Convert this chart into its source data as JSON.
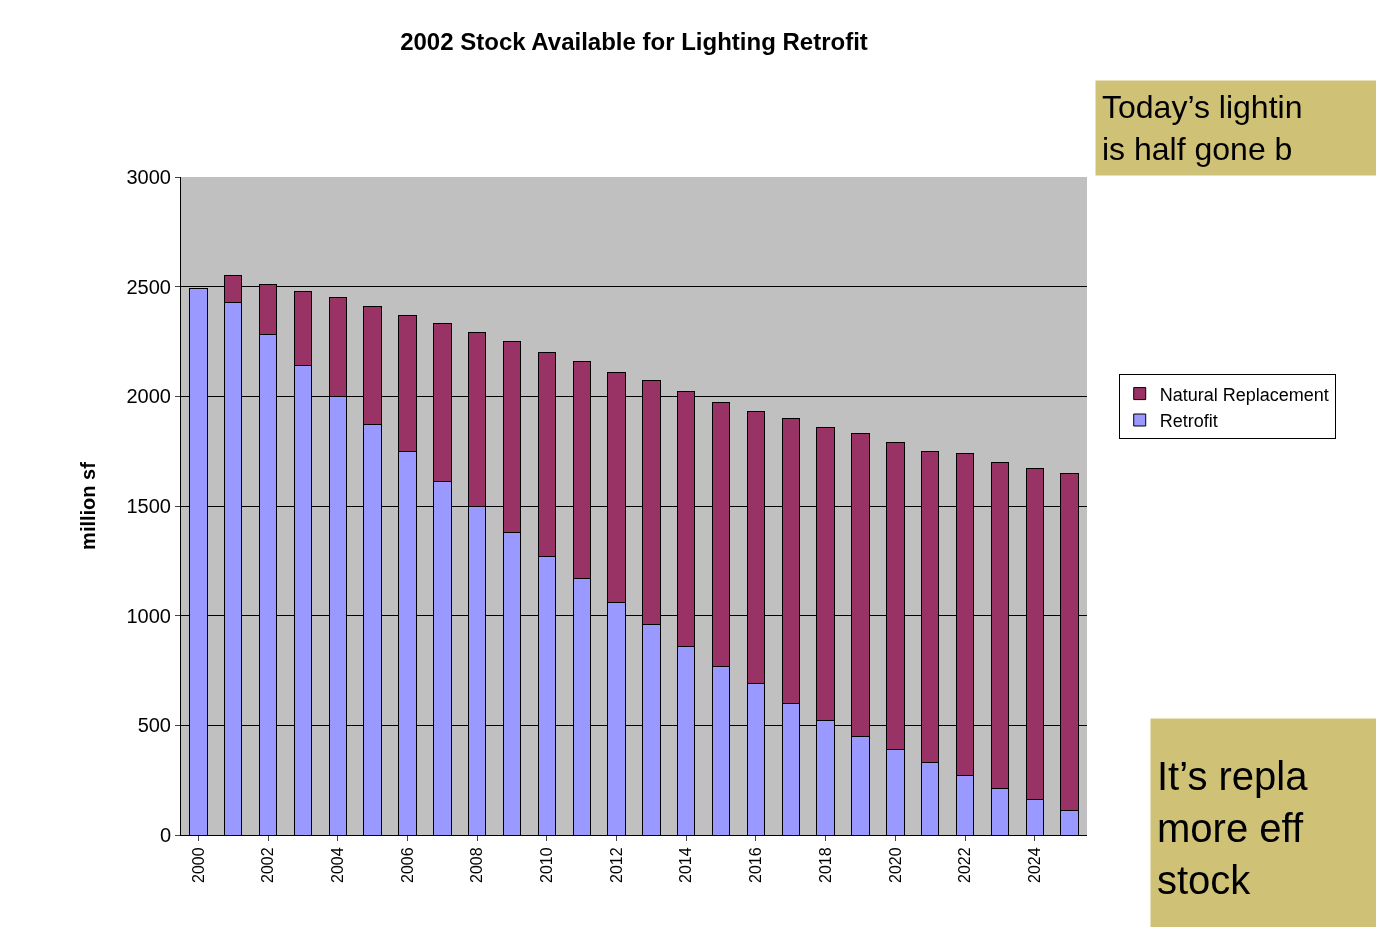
{
  "chart_data": {
    "type": "bar",
    "title": "2002 Stock Available for Lighting Retrofit",
    "ylabel": "million sf",
    "categories": [
      "2000",
      null,
      "2002",
      null,
      "2004",
      null,
      "2006",
      null,
      "2008",
      null,
      "2010",
      null,
      "2012",
      null,
      "2014",
      null,
      "2016",
      null,
      "2018",
      null,
      "2020",
      null,
      "2022",
      null,
      "2024",
      null
    ],
    "stacked": true,
    "series": [
      {
        "name": "Retrofit",
        "color": "#9999ff",
        "values": [
          2490,
          2430,
          2280,
          2140,
          2000,
          1870,
          1750,
          1610,
          1500,
          1380,
          1270,
          1170,
          1060,
          960,
          860,
          770,
          690,
          600,
          520,
          450,
          390,
          330,
          270,
          210,
          160,
          110
        ]
      },
      {
        "name": "Natural Replacement",
        "color": "#993366",
        "values": [
          null,
          120,
          230,
          340,
          450,
          540,
          620,
          720,
          790,
          870,
          930,
          990,
          1050,
          1110,
          1160,
          1200,
          1240,
          1300,
          1340,
          1380,
          1400,
          1420,
          1470,
          1490,
          1510,
          1540
        ]
      }
    ],
    "ylim": [
      0,
      3000
    ],
    "yticks": [
      0,
      500,
      1000,
      1500,
      2000,
      2500,
      3000
    ],
    "grid": "y",
    "legend": "right",
    "annotations": [
      "Today’s lightin\nis half gone b",
      "It’s repla\nmore eff\nstock"
    ]
  }
}
